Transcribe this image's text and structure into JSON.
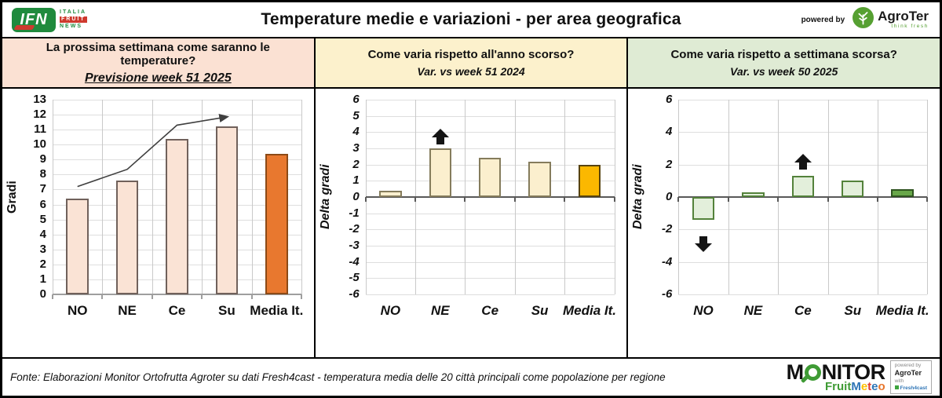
{
  "header": {
    "title": "Temperature medie e variazioni - per area geografica",
    "powered_by": "powered by",
    "agroter": {
      "name": "AgroTer",
      "tagline": "think fresh"
    },
    "ifn": {
      "abbr": "IFN",
      "lines": [
        "ITALIA",
        "FRUIT",
        "NEWS"
      ]
    }
  },
  "footer": {
    "source": "Fonte: Elaborazioni Monitor Ortofrutta Agroter su dati Fresh4cast - temperatura media delle 20 città principali come popolazione per regione",
    "monitor": {
      "word_m": "M",
      "word_rest": "NITOR",
      "fruit": "Fruit",
      "meteo": "Meteo",
      "meteo_colors": [
        "#2E75B6",
        "#FFC000",
        "#E03C31",
        "#2E75B6",
        "#E8762C"
      ],
      "box_lines": [
        "powered by",
        "AgroTer",
        "with",
        "Fresh4cast"
      ]
    }
  },
  "chart_data": [
    {
      "type": "bar",
      "panel_question": "La prossima settimana come saranno le temperature?",
      "subtitle": "Previsione week 51 2025",
      "header_bg": "#FBE1D3",
      "ylabel": "Gradi",
      "ylim": [
        0,
        13
      ],
      "ytick_step": 1,
      "categories": [
        "NO",
        "NE",
        "Ce",
        "Su",
        "Media It."
      ],
      "values": [
        6.4,
        7.6,
        10.4,
        11.2,
        9.4
      ],
      "bar_fill": "#FAE3D5",
      "bar_border": "#70615B",
      "highlight_index": 4,
      "highlight_fill": "#E8782F",
      "highlight_border": "#8C4A16",
      "italic_axes": false,
      "grid": true,
      "legend": "none",
      "trend_arrow": {
        "categories": [
          "NO",
          "NE",
          "Ce",
          "Su"
        ],
        "values": [
          7.2,
          8.35,
          11.3,
          11.85
        ]
      },
      "annotations": []
    },
    {
      "type": "bar",
      "panel_question": "Come varia rispetto all'anno scorso?",
      "subtitle": "Var. vs week 51 2024",
      "header_bg": "#FCF1CC",
      "ylabel": "Delta gradi",
      "ylim": [
        -6,
        6
      ],
      "ytick_step": 1,
      "categories": [
        "NO",
        "NE",
        "Ce",
        "Su",
        "Media It."
      ],
      "values": [
        0.4,
        3.0,
        2.4,
        2.2,
        2.0
      ],
      "bar_fill": "#FBEFCE",
      "bar_border": "#857C5C",
      "highlight_index": 4,
      "highlight_fill": "#FBB800",
      "highlight_border": "#574310",
      "italic_axes": true,
      "grid": true,
      "legend": "none",
      "annotations": [
        {
          "category": "NE",
          "direction": "up",
          "value": 3.75
        }
      ]
    },
    {
      "type": "bar",
      "panel_question": "Come varia rispetto a settimana scorsa?",
      "subtitle": "Var. vs week 50 2025",
      "header_bg": "#DFEBD4",
      "ylabel": "Delta gradi",
      "ylim": [
        -6,
        6
      ],
      "ytick_step": 2,
      "categories": [
        "NO",
        "NE",
        "Ce",
        "Su",
        "Media It."
      ],
      "values": [
        -1.4,
        0.3,
        1.3,
        1.0,
        0.5
      ],
      "bar_fill": "#E3EFDB",
      "bar_border": "#54823B",
      "highlight_index": 4,
      "highlight_fill": "#68A749",
      "highlight_border": "#2F5420",
      "italic_axes": true,
      "grid": true,
      "legend": "none",
      "annotations": [
        {
          "category": "NO",
          "direction": "down",
          "value": -2.9
        },
        {
          "category": "Ce",
          "direction": "up",
          "value": 2.2
        }
      ]
    }
  ]
}
